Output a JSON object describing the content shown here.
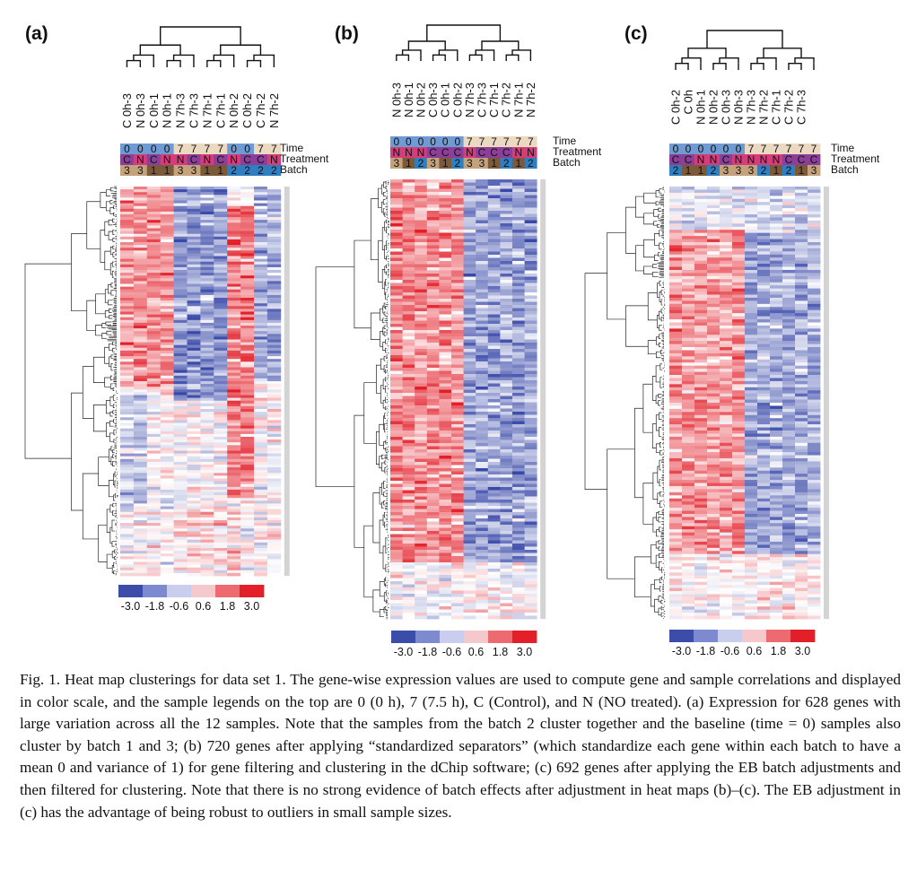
{
  "caption": "Fig. 1. Heat map clusterings for data set 1. The gene-wise expression values are used to compute gene and sample correlations and displayed in color scale, and the sample legends on the top are 0 (0 h), 7 (7.5 h), C (Control), and N (NO treated). (a) Expression for 628 genes with large variation across all the 12 samples. Note that the samples from the batch 2 cluster together and the baseline (time = 0) samples also cluster by batch 1 and 3; (b) 720 genes after applying “standardized separators” (which standardize each gene within each batch to have a mean 0 and variance of 1) for gene filtering and clustering in the dChip software; (c) 692 genes after applying the EB batch adjustments and then filtered for clustering. Note that there is no strong evidence of batch effects after adjustment in heat maps (b)–(c). The EB adjustment in (c) has the advantage of being robust to outliers in small sample sizes.",
  "legend_row_labels": [
    "Time",
    "Treatment",
    "Batch"
  ],
  "colors": {
    "time_0": "#6f9bd2",
    "time_7": "#ecd9c2",
    "treat_C": "#8c3f99",
    "treat_N": "#d63c7a",
    "batch_1": "#7a5a3a",
    "batch_2": "#2f7fc0",
    "batch_3": "#c4a27b",
    "scale": [
      "#3b4da8",
      "#7d8ad0",
      "#c9cdee",
      "#f5c8cc",
      "#ec6a70",
      "#e3202a"
    ]
  },
  "chart_data": [
    {
      "type": "heatmap",
      "panel_label": "(a)",
      "samples": [
        "C 0h-3",
        "N 0h-3",
        "C 0h-1",
        "N 0h-1",
        "N 7h-3",
        "C 7h-3",
        "N 7h-1",
        "C 7h-1",
        "N 0h-2",
        "C 0h-2",
        "C 7h-2",
        "N 7h-2"
      ],
      "time": [
        "0",
        "0",
        "0",
        "0",
        "7",
        "7",
        "7",
        "7",
        "0",
        "0",
        "7",
        "7"
      ],
      "treatment": [
        "C",
        "N",
        "C",
        "N",
        "N",
        "C",
        "N",
        "C",
        "N",
        "C",
        "C",
        "N"
      ],
      "batch": [
        "3",
        "3",
        "1",
        "1",
        "3",
        "3",
        "1",
        "1",
        "2",
        "2",
        "2",
        "2"
      ],
      "genes": 628,
      "color_scale": [
        -3.0,
        -1.8,
        -0.6,
        0.6,
        1.8,
        3.0
      ],
      "color_scale_labels": [
        "-3.0",
        "-1.8",
        "-0.6",
        "0.6",
        "1.8",
        "3.0"
      ]
    },
    {
      "type": "heatmap",
      "panel_label": "(b)",
      "samples": [
        "N 0h-3",
        "N 0h-1",
        "N 0h-2",
        "C 0h-3",
        "C 0h-1",
        "C 0h-2",
        "N 7h-3",
        "C 7h-3",
        "C 7h-1",
        "C 7h-2",
        "N 7h-1",
        "N 7h-2"
      ],
      "time": [
        "0",
        "0",
        "0",
        "0",
        "0",
        "0",
        "7",
        "7",
        "7",
        "7",
        "7",
        "7"
      ],
      "treatment": [
        "N",
        "N",
        "N",
        "C",
        "C",
        "C",
        "N",
        "C",
        "C",
        "C",
        "N",
        "N"
      ],
      "batch": [
        "3",
        "1",
        "2",
        "3",
        "1",
        "2",
        "3",
        "3",
        "1",
        "2",
        "1",
        "2"
      ],
      "genes": 720,
      "color_scale": [
        -3.0,
        -1.8,
        -0.6,
        0.6,
        1.8,
        3.0
      ],
      "color_scale_labels": [
        "-3.0",
        "-1.8",
        "-0.6",
        "0.6",
        "1.8",
        "3.0"
      ]
    },
    {
      "type": "heatmap",
      "panel_label": "(c)",
      "samples": [
        "C 0h-2",
        "C 0h",
        "N 0h-1",
        "N 0h-2",
        "C 0h-3",
        "N 0h-3",
        "N 7h-3",
        "N 7h-2",
        "C 7h-1",
        "C 7h-2",
        "C 7h-3",
        ""
      ],
      "time": [
        "0",
        "0",
        "0",
        "0",
        "0",
        "0",
        "7",
        "7",
        "7",
        "7",
        "7",
        "7"
      ],
      "treatment": [
        "C",
        "C",
        "N",
        "N",
        "C",
        "N",
        "N",
        "N",
        "N",
        "C",
        "C",
        "C"
      ],
      "batch": [
        "2",
        "1",
        "1",
        "2",
        "3",
        "3",
        "3",
        "2",
        "1",
        "2",
        "1",
        "3"
      ],
      "genes": 692,
      "color_scale": [
        -3.0,
        -1.8,
        -0.6,
        0.6,
        1.8,
        3.0
      ],
      "color_scale_labels": [
        "-3.0",
        "-1.8",
        "-0.6",
        "0.6",
        "1.8",
        "3.0"
      ]
    }
  ]
}
